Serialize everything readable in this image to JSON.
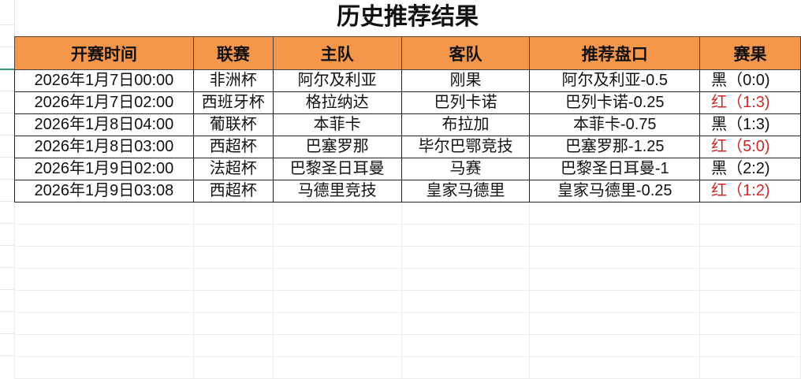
{
  "title": "历史推荐结果",
  "columns": [
    "开赛时间",
    "联赛",
    "主队",
    "客队",
    "推荐盘口",
    "赛果"
  ],
  "rows": [
    {
      "time": "2026年1月7日00:00",
      "league": "非洲杯",
      "home": "阿尔及利亚",
      "away": "刚果",
      "pick": "阿尔及利亚-0.5",
      "result": "黑（0:0)",
      "outcome": "black"
    },
    {
      "time": "2026年1月7日02:00",
      "league": "西班牙杯",
      "home": "格拉纳达",
      "away": "巴列卡诺",
      "pick": "巴列卡诺-0.25",
      "result": "红（1:3)",
      "outcome": "red"
    },
    {
      "time": "2026年1月8日04:00",
      "league": "葡联杯",
      "home": "本菲卡",
      "away": "布拉加",
      "pick": "本菲卡-0.75",
      "result": "黑（1:3)",
      "outcome": "black"
    },
    {
      "time": "2026年1月8日03:00",
      "league": "西超杯",
      "home": "巴塞罗那",
      "away": "毕尔巴鄂竞技",
      "pick": "巴塞罗那-1.25",
      "result": "红（5:0)",
      "outcome": "red"
    },
    {
      "time": "2026年1月9日02:00",
      "league": "法超杯",
      "home": "巴黎圣日耳曼",
      "away": "马赛",
      "pick": "巴黎圣日耳曼-1",
      "result": "黑（2:2)",
      "outcome": "black"
    },
    {
      "time": "2026年1月9日03:08",
      "league": "西超杯",
      "home": "马德里竞技",
      "away": "皇家马德里",
      "pick": "皇家马德里-0.25",
      "result": "红（1:2)",
      "outcome": "red"
    }
  ],
  "colors": {
    "header_bg": "#f5974a",
    "red_result": "#c8282a",
    "selection": "#2e9e6a"
  }
}
